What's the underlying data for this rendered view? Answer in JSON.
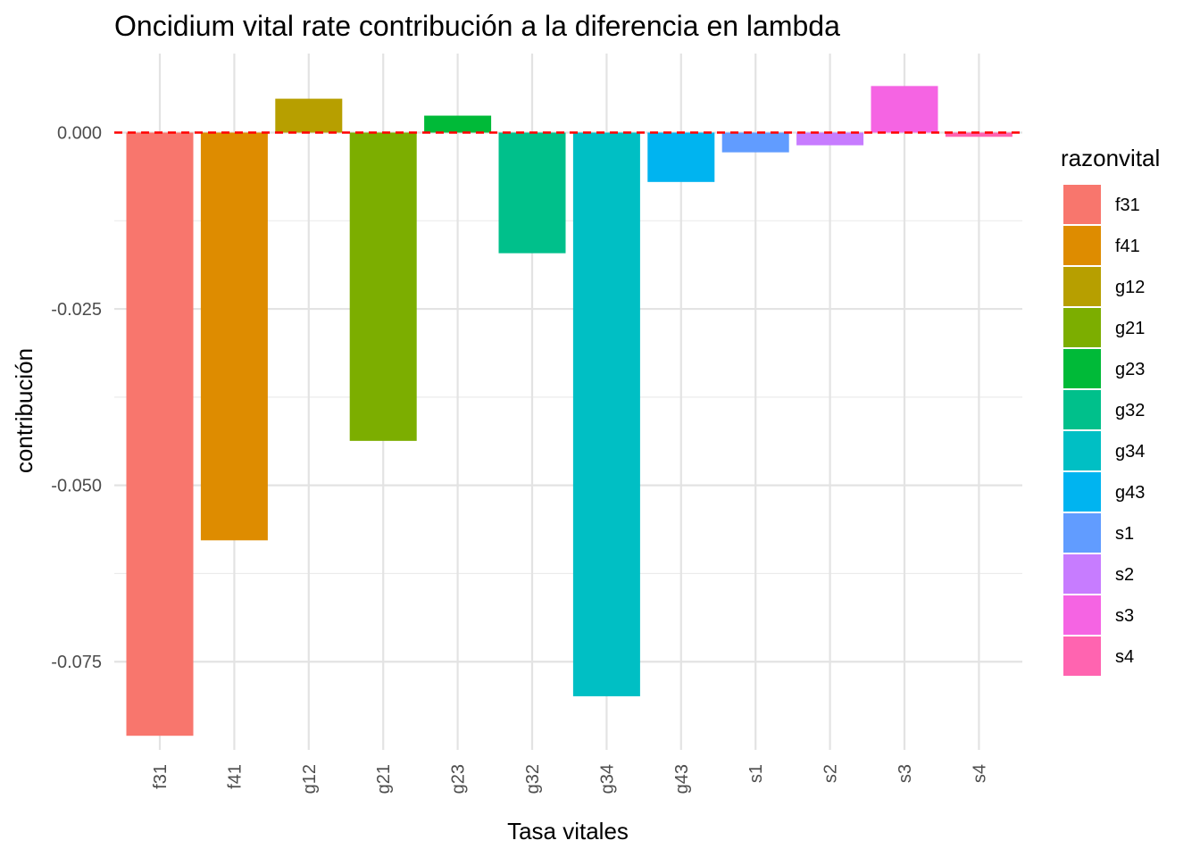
{
  "chart_data": {
    "type": "bar",
    "title": "Oncidium vital rate contribución a la diferencia en lambda",
    "xlabel": "Tasa vitales",
    "ylabel": "contribución",
    "categories": [
      "f31",
      "f41",
      "g12",
      "g21",
      "g23",
      "g32",
      "g34",
      "g43",
      "s1",
      "s2",
      "s3",
      "s4"
    ],
    "values": [
      -0.0855,
      -0.0578,
      0.0048,
      -0.0437,
      0.0024,
      -0.0171,
      -0.0799,
      -0.007,
      -0.0028,
      -0.0018,
      0.0066,
      -0.0006
    ],
    "colors": [
      "#F8766D",
      "#DE8C00",
      "#B79F00",
      "#7CAE00",
      "#00BA38",
      "#00C08B",
      "#00BFC4",
      "#00B4F0",
      "#619CFF",
      "#C77CFF",
      "#F564E3",
      "#FF64B0"
    ],
    "ylim": [
      -0.0875,
      0.0112
    ],
    "yticks": [
      0.0,
      -0.025,
      -0.05,
      -0.075
    ],
    "ytick_labels": [
      "0.000",
      "-0.025",
      "-0.050",
      "-0.075"
    ],
    "reference_line": {
      "y": 0,
      "style": "dashed",
      "color": "#FF0000"
    },
    "grid": true,
    "legend": {
      "title": "razonvital",
      "placement": "right",
      "entries": [
        "f31",
        "f41",
        "g12",
        "g21",
        "g23",
        "g32",
        "g34",
        "g43",
        "s1",
        "s2",
        "s3",
        "s4"
      ]
    }
  }
}
